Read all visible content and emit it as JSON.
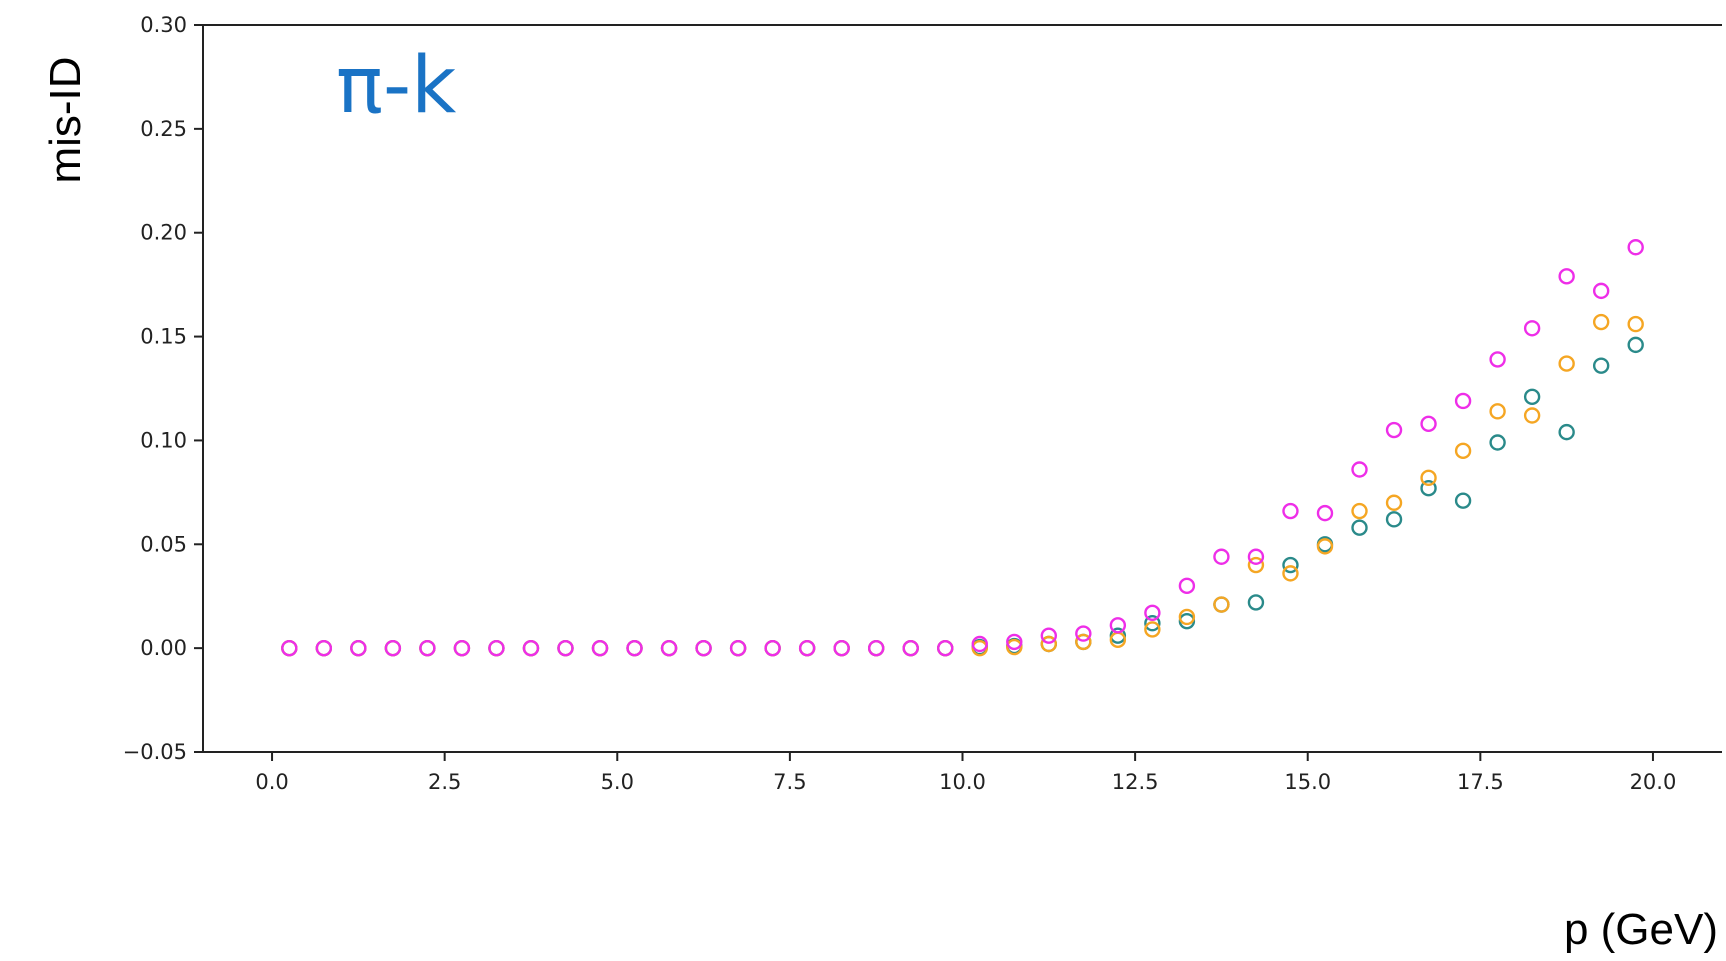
{
  "chart_data": {
    "type": "scatter",
    "title": "π-k",
    "xlabel": "p (GeV)",
    "ylabel": "mis-ID",
    "xlim": [
      -1.0,
      21.0
    ],
    "ylim": [
      -0.05,
      0.3
    ],
    "xticks": [
      "0.0",
      "2.5",
      "5.0",
      "7.5",
      "10.0",
      "12.5",
      "15.0",
      "17.5",
      "20.0"
    ],
    "xtick_values": [
      0.0,
      2.5,
      5.0,
      7.5,
      10.0,
      12.5,
      15.0,
      17.5,
      20.0
    ],
    "yticks": [
      "−0.05",
      "0.00",
      "0.05",
      "0.10",
      "0.15",
      "0.20",
      "0.25",
      "0.30"
    ],
    "ytick_values": [
      -0.05,
      0.0,
      0.05,
      0.1,
      0.15,
      0.2,
      0.25,
      0.3
    ],
    "grid": false,
    "marker": "open-circle",
    "x": [
      0.25,
      0.75,
      1.25,
      1.75,
      2.25,
      2.75,
      3.25,
      3.75,
      4.25,
      4.75,
      5.25,
      5.75,
      6.25,
      6.75,
      7.25,
      7.75,
      8.25,
      8.75,
      9.25,
      9.75,
      10.25,
      10.75,
      11.25,
      11.75,
      12.25,
      12.75,
      13.25,
      13.75,
      14.25,
      14.75,
      15.25,
      15.75,
      16.25,
      16.75,
      17.25,
      17.75,
      18.25,
      18.75,
      19.25,
      19.75
    ],
    "series": [
      {
        "color": "#2a8a8a",
        "values": [
          0,
          0,
          0,
          0,
          0,
          0,
          0,
          0,
          0,
          0,
          0,
          0,
          0,
          0,
          0,
          0,
          0,
          0,
          0,
          0,
          0.0005,
          0.001,
          0.002,
          0.003,
          0.006,
          0.012,
          0.013,
          0.021,
          0.022,
          0.04,
          0.05,
          0.058,
          0.062,
          0.077,
          0.071,
          0.099,
          0.121,
          0.104,
          0.136,
          0.146
        ]
      },
      {
        "color": "#f5a623",
        "values": [
          0,
          0,
          0,
          0,
          0,
          0,
          0,
          0,
          0,
          0,
          0,
          0,
          0,
          0,
          0,
          0,
          0,
          0,
          0,
          0,
          0.0,
          0.0005,
          0.002,
          0.003,
          0.004,
          0.009,
          0.015,
          0.021,
          0.04,
          0.036,
          0.049,
          0.066,
          0.07,
          0.082,
          0.095,
          0.114,
          0.112,
          0.137,
          0.157,
          0.156
        ]
      },
      {
        "color": "#ee2ee8",
        "values": [
          0,
          0,
          0,
          0,
          0,
          0,
          0,
          0,
          0,
          0,
          0,
          0,
          0,
          0,
          0,
          0,
          0,
          0,
          0,
          0,
          0.002,
          0.003,
          0.006,
          0.007,
          0.011,
          0.017,
          0.03,
          0.044,
          0.044,
          0.066,
          0.065,
          0.086,
          0.105,
          0.108,
          0.119,
          0.139,
          0.154,
          0.179,
          0.172,
          0.193
        ]
      }
    ]
  }
}
